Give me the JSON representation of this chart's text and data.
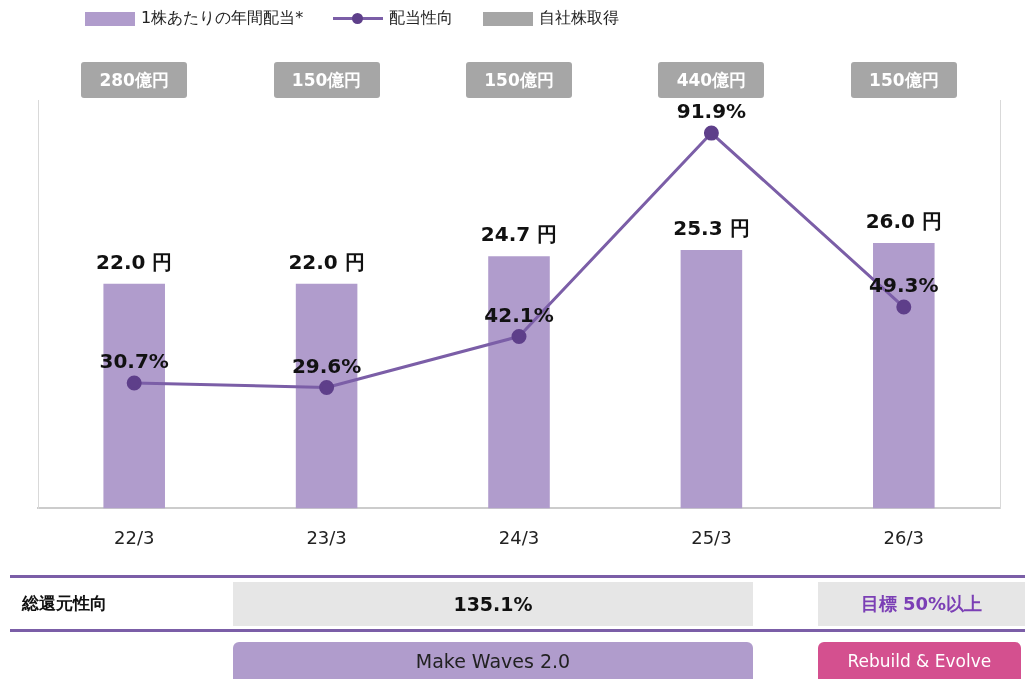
{
  "chart_data": {
    "type": "bar",
    "categories": [
      "22/3",
      "23/3",
      "24/3",
      "25/3",
      "26/3"
    ],
    "series": [
      {
        "name": "1株あたりの年間配当*",
        "color": "#b09ccc",
        "values": [
          22.0,
          22.0,
          24.7,
          25.3,
          26.0
        ],
        "value_labels": [
          "22.0 円",
          "22.0 円",
          "24.7 円",
          "25.3 円",
          "26.0 円"
        ]
      },
      {
        "name": "配当性向",
        "type": "line",
        "axis": "y2",
        "color": "#7b5ea7",
        "values": [
          30.7,
          29.6,
          42.1,
          91.9,
          49.3
        ],
        "value_labels": [
          "30.7%",
          "29.6%",
          "42.1%",
          "91.9%",
          "49.3%"
        ]
      }
    ],
    "ylim": [
      0,
      40
    ],
    "y2lim": [
      0,
      100
    ],
    "tick_labels": "x",
    "grid": false,
    "legend": "top left",
    "marker": "circle",
    "line_style": "solid",
    "annotations": [
      "280億円",
      "150億円",
      "150億円",
      "440億円",
      "150億円",
      "自社株取得",
      "総還元性向",
      "135.1%",
      "目標 50%以上",
      "Make Waves 2.0",
      "Rebuild & Evolve"
    ]
  }
}
